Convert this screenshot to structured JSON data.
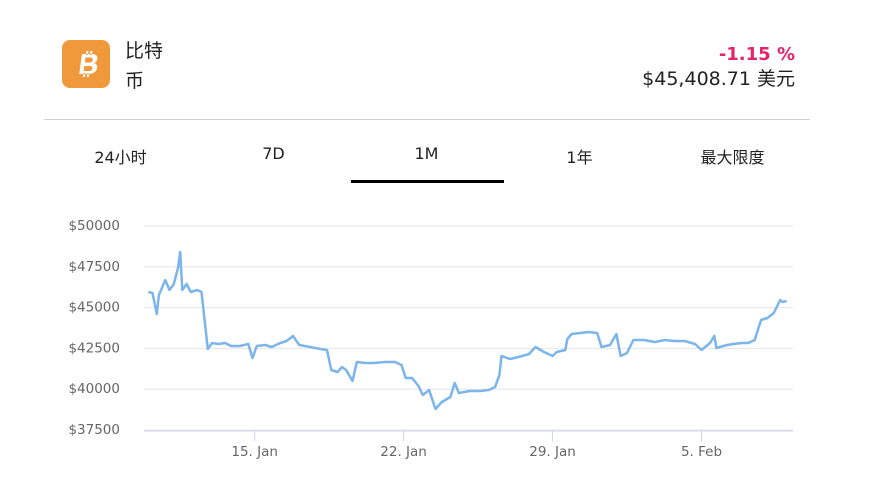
{
  "header": {
    "name": "比特币",
    "change": "-1.15 %",
    "price": "$45,408.71 美元"
  },
  "tabs": [
    "24小时",
    "7D",
    "1M",
    "1年",
    "最大限度"
  ],
  "active_tab": 2,
  "chart_data": {
    "type": "line",
    "color": "#7cb5ec",
    "grid": true,
    "xlim": [
      9.8,
      40.3
    ],
    "xticks": [
      {
        "value": 15,
        "label": "15. Jan"
      },
      {
        "value": 22,
        "label": "22. Jan"
      },
      {
        "value": 29,
        "label": "29. Jan"
      },
      {
        "value": 36,
        "label": "5. Feb"
      }
    ],
    "ylim": [
      37500,
      50000
    ],
    "yticks": [
      {
        "value": 37500,
        "label": "$37500"
      },
      {
        "value": 40000,
        "label": "$40000"
      },
      {
        "value": 42500,
        "label": "$42500"
      },
      {
        "value": 45000,
        "label": "$45000"
      },
      {
        "value": 47500,
        "label": "$47500"
      },
      {
        "value": 50000,
        "label": "$50000"
      }
    ],
    "x": [
      10.0,
      10.2,
      10.4,
      10.5,
      10.8,
      11.0,
      11.2,
      11.4,
      11.5,
      11.6,
      11.8,
      12.0,
      12.3,
      12.5,
      12.7,
      12.8,
      13.0,
      13.3,
      13.6,
      13.9,
      14.3,
      14.7,
      14.9,
      15.1,
      15.5,
      15.8,
      16.2,
      16.5,
      16.8,
      17.1,
      17.6,
      18.1,
      18.4,
      18.6,
      18.9,
      19.1,
      19.3,
      19.6,
      19.8,
      20.2,
      20.6,
      21.1,
      21.6,
      21.9,
      22.1,
      22.4,
      22.7,
      22.9,
      23.2,
      23.5,
      23.8,
      24.2,
      24.4,
      24.6,
      25.1,
      25.6,
      26.0,
      26.3,
      26.5,
      26.6,
      27.0,
      27.4,
      27.9,
      28.2,
      28.6,
      29.0,
      29.2,
      29.6,
      29.7,
      29.9,
      30.3,
      30.7,
      31.1,
      31.3,
      31.7,
      32.0,
      32.2,
      32.5,
      32.8,
      33.3,
      33.8,
      34.3,
      34.7,
      35.2,
      35.7,
      36.0,
      36.4,
      36.6,
      36.7,
      37.2,
      37.5,
      37.9,
      38.2,
      38.5,
      38.8,
      39.1,
      39.4,
      39.7,
      39.8,
      40.0
    ],
    "values": [
      45955,
      45894,
      44607,
      45771,
      46690,
      46078,
      46445,
      47426,
      48406,
      46078,
      46445,
      45955,
      46078,
      45955,
      43627,
      42463,
      42830,
      42769,
      42830,
      42647,
      42647,
      42769,
      41911,
      42647,
      42708,
      42585,
      42830,
      42953,
      43259,
      42708,
      42585,
      42463,
      42402,
      41176,
      41054,
      41360,
      41176,
      40502,
      41666,
      41605,
      41605,
      41666,
      41666,
      41483,
      40686,
      40686,
      40196,
      39644,
      39951,
      38787,
      39216,
      39522,
      40380,
      39767,
      39890,
      39890,
      39951,
      40135,
      40870,
      42034,
      41850,
      41973,
      42157,
      42585,
      42279,
      42034,
      42279,
      42402,
      43076,
      43382,
      43443,
      43504,
      43443,
      42585,
      42708,
      43382,
      42034,
      42218,
      43014,
      43014,
      42892,
      43014,
      42953,
      42953,
      42769,
      42402,
      42830,
      43259,
      42524,
      42708,
      42769,
      42830,
      42830,
      43014,
      44240,
      44362,
      44669,
      45465,
      45343,
      45404
    ]
  }
}
